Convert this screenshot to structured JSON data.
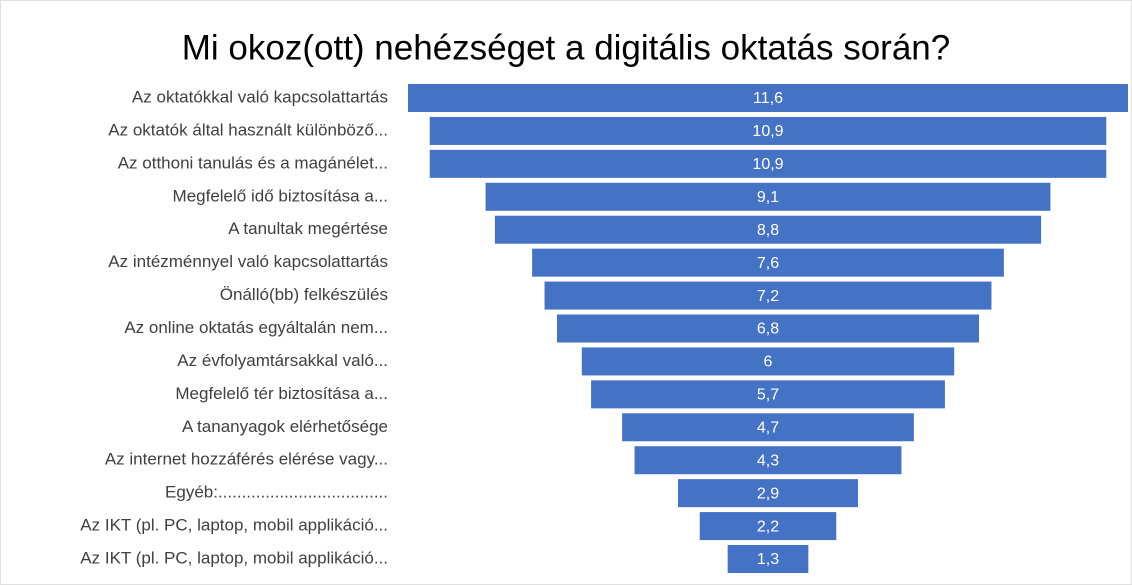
{
  "chart_data": {
    "type": "funnel",
    "title": "Mi okoz(ott) nehézséget a digitális oktatás során?",
    "categories": [
      "Az oktatókkal való kapcsolattartás",
      "Az oktatók által használt különböző...",
      "Az otthoni tanulás és a magánélet...",
      "Megfelelő idő biztosítása a...",
      "A tanultak megértése",
      "Az intézménnyel való kapcsolattartás",
      "Önálló(bb) felkészülés",
      "Az online oktatás egyáltalán nem...",
      "Az évfolyamtársakkal való...",
      "Megfelelő tér biztosítása a...",
      "A tananyagok elérhetősége",
      "Az internet hozzáférés elérése vagy...",
      "Egyéb:....................................",
      "Az IKT (pl. PC, laptop, mobil applikáció...",
      "Az IKT (pl. PC, laptop, mobil applikáció..."
    ],
    "values": [
      11.6,
      10.9,
      10.9,
      9.1,
      8.8,
      7.6,
      7.2,
      6.8,
      6,
      5.7,
      4.7,
      4.3,
      2.9,
      2.2,
      1.3
    ],
    "value_labels": [
      "11,6",
      "10,9",
      "10,9",
      "9,1",
      "8,8",
      "7,6",
      "7,2",
      "6,8",
      "6",
      "5,7",
      "4,7",
      "4,3",
      "2,9",
      "2,2",
      "1,3"
    ],
    "color": "#4472c4"
  }
}
